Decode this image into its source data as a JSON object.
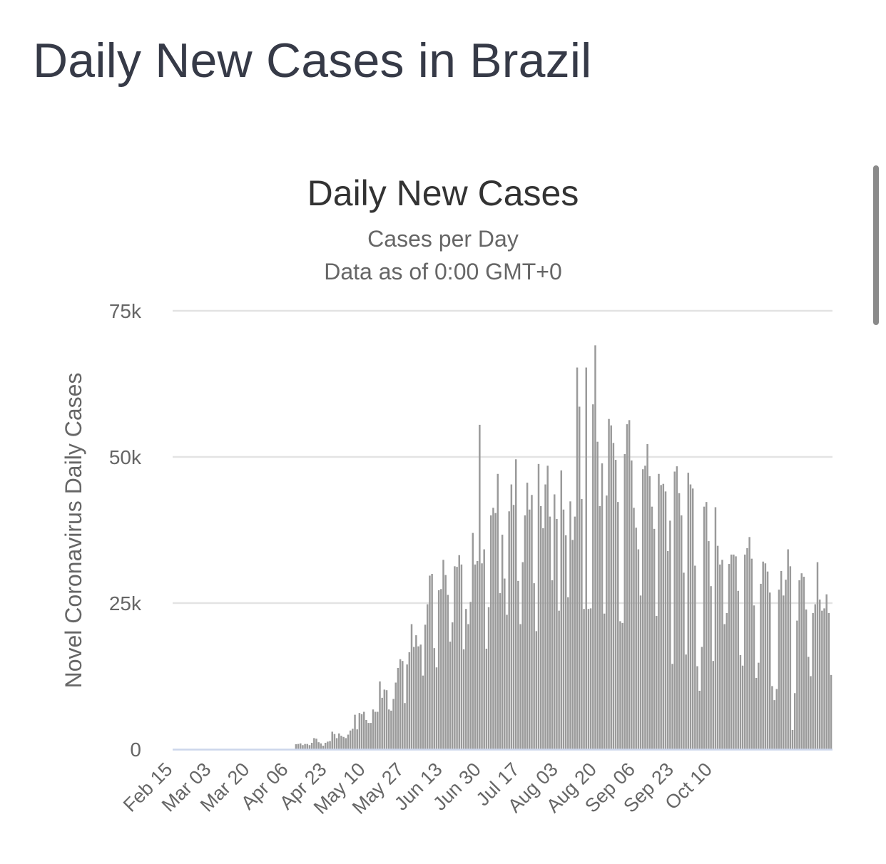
{
  "page": {
    "title": "Daily New Cases in Brazil"
  },
  "chart_data": {
    "type": "bar",
    "title": "Daily New Cases",
    "subtitle": "Cases per Day",
    "subtitle2": "Data as of 0:00 GMT+0",
    "ylabel": "Novel Coronavirus Daily Cases",
    "xlabel": "",
    "ylim": [
      0,
      75000
    ],
    "y_ticks": [
      0,
      25000,
      50000,
      75000
    ],
    "y_tick_labels": [
      "0",
      "25k",
      "50k",
      "75k"
    ],
    "x_start": "2020-02-15",
    "x_tick_labels": [
      "Feb 15",
      "Mar 03",
      "Mar 20",
      "Apr 06",
      "Apr 23",
      "May 10",
      "May 27",
      "Jun 13",
      "Jun 30",
      "Jul 17",
      "Aug 03",
      "Aug 20",
      "Sep 06",
      "Sep 23",
      "Oct 10"
    ],
    "grid": true,
    "legend": "none",
    "bar_color": "#9a9a9a",
    "series": [
      {
        "values": [
          0,
          0,
          0,
          0,
          0,
          0,
          0,
          0,
          0,
          0,
          0,
          0,
          0,
          0,
          0,
          0,
          0,
          0,
          0,
          0,
          0,
          0,
          0,
          0,
          0,
          0,
          0,
          0,
          0,
          0,
          0,
          0,
          0,
          0,
          0,
          0,
          0,
          0,
          0,
          0,
          0,
          0,
          0,
          0,
          0,
          0,
          0,
          0,
          0,
          0,
          0,
          0,
          0,
          0,
          850,
          900,
          1000,
          700,
          900,
          900,
          700,
          1100,
          1900,
          1800,
          1200,
          1000,
          600,
          1100,
          1300,
          1400,
          3000,
          2600,
          1900,
          2700,
          2300,
          2100,
          1900,
          2500,
          3200,
          3500,
          5900,
          3400,
          6200,
          6000,
          6400,
          5000,
          4500,
          4500,
          6800,
          6400,
          6400,
          11600,
          8800,
          10200,
          10100,
          6800,
          6600,
          8600,
          11400,
          13900,
          15400,
          15100,
          7900,
          14500,
          16600,
          21400,
          17500,
          19500,
          17600,
          17900,
          12600,
          21300,
          24800,
          29700,
          30000,
          17300,
          14000,
          27200,
          27400,
          32400,
          29800,
          26400,
          18400,
          21700,
          31300,
          31200,
          33200,
          31600,
          17100,
          24000,
          21400,
          25200,
          37000,
          31600,
          32200,
          55500,
          31800,
          34200,
          17200,
          24300,
          40000,
          41300,
          40400,
          47100,
          26700,
          36700,
          29200,
          23000,
          40700,
          45300,
          41800,
          49600,
          28800,
          21400,
          32000,
          40000,
          45600,
          41000,
          43500,
          28400,
          20200,
          48800,
          41600,
          37800,
          45300,
          48500,
          39800,
          28900,
          43600,
          39400,
          23700,
          47700,
          41000,
          36600,
          26000,
          42400,
          35800,
          39800,
          65300,
          58600,
          42800,
          24000,
          65300,
          24000,
          24100,
          59000,
          69100,
          52600,
          41600,
          48900,
          23200,
          43400,
          56500,
          55400,
          52400,
          49500,
          42300,
          21900,
          21600,
          50500,
          55600,
          56300,
          49400,
          41300,
          37900,
          34200,
          26300,
          47900,
          48500,
          52200,
          46700,
          41500,
          37700,
          22800,
          47100,
          45200,
          45400,
          44100,
          33900,
          39100,
          14600,
          47500,
          48400,
          43800,
          40000,
          30200,
          16200,
          47300,
          45300,
          44600,
          31400,
          14200,
          10000,
          17500,
          41500,
          42300,
          35600,
          27900,
          15100,
          41400,
          34800,
          31600,
          32400,
          21400,
          23300,
          31700,
          33300,
          33300,
          33000,
          27100,
          16100,
          14300,
          33300,
          34400,
          36300,
          32600,
          24600,
          12200,
          14800,
          28300,
          32100,
          31800,
          30400,
          26800,
          10800,
          8400,
          10300,
          27300,
          30500,
          26300,
          29000,
          34200,
          31300,
          3300,
          9600,
          22000,
          28900,
          30100,
          29500,
          23900,
          15800,
          12500,
          23300,
          24800,
          32000,
          25600,
          23700,
          24100,
          26500,
          23300,
          12700
        ]
      }
    ]
  }
}
